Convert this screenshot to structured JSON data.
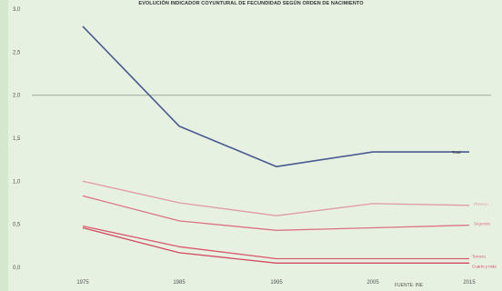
{
  "chart_data": {
    "type": "line",
    "title": "EVOLUCIÓN INDICADOR COYUNTURAL DE FECUNDIDAD SEGÚN ORDEN DE NACIMIENTO",
    "x": [
      "1975",
      "1985",
      "1995",
      "2005",
      "2015"
    ],
    "yticks": [
      "0,0",
      "0,5",
      "1,0",
      "1,5",
      "2,0",
      "2,5",
      "3,0"
    ],
    "ylim": [
      0,
      3.0
    ],
    "reference_line": 2.0,
    "grid": false,
    "source": "FUENTE: INE",
    "series": [
      {
        "name": "Total",
        "color": "#4a5a90",
        "values": [
          2.8,
          1.64,
          1.17,
          1.34,
          1.34
        ]
      },
      {
        "name": "Primero",
        "color": "#e09aa6",
        "values": [
          1.0,
          0.75,
          0.6,
          0.74,
          0.72
        ]
      },
      {
        "name": "Segundo",
        "color": "#dc7282",
        "values": [
          0.83,
          0.54,
          0.43,
          0.46,
          0.49
        ]
      },
      {
        "name": "Tercero",
        "color": "#d85a6c",
        "values": [
          0.48,
          0.24,
          0.1,
          0.1,
          0.1
        ]
      },
      {
        "name": "Cuarto y más",
        "color": "#d34a5e",
        "values": [
          0.46,
          0.17,
          0.05,
          0.05,
          0.05
        ]
      }
    ]
  }
}
